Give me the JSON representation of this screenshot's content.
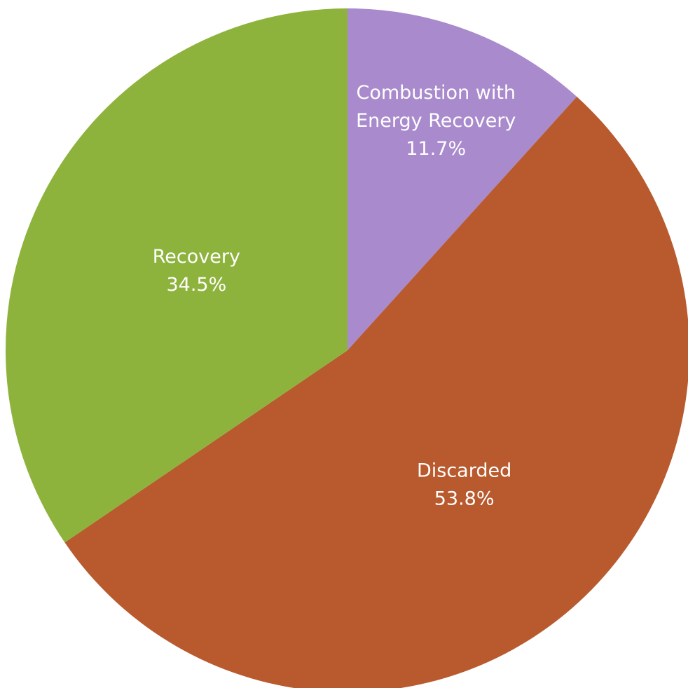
{
  "chart_data": {
    "type": "pie",
    "title": "",
    "legend": "none",
    "slices": [
      {
        "label_lines": [
          "Combustion with",
          "Energy Recovery"
        ],
        "value_label": "11.7%",
        "value": 11.7,
        "color": "#a98acd"
      },
      {
        "label_lines": [
          "Discarded"
        ],
        "value_label": "53.8%",
        "value": 53.8,
        "color": "#b85a2e"
      },
      {
        "label_lines": [
          "Recovery"
        ],
        "value_label": "34.5%",
        "value": 34.5,
        "color": "#8db33d"
      }
    ]
  }
}
